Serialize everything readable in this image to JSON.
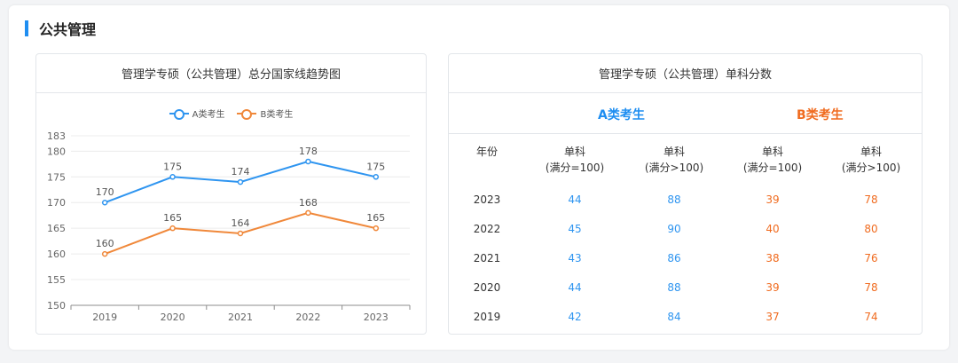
{
  "section": {
    "title": "公共管理"
  },
  "colors": {
    "a": "#2f95f0",
    "b": "#f0883a",
    "accent": "#1f8ef1"
  },
  "trend_panel": {
    "title": "管理学专硕（公共管理）总分国家线趋势图"
  },
  "chart_data": {
    "type": "line",
    "title": "管理学专硕（公共管理）总分国家线趋势图",
    "categories": [
      "2019",
      "2020",
      "2021",
      "2022",
      "2023"
    ],
    "series": [
      {
        "name": "A类考生",
        "values": [
          170,
          175,
          174,
          178,
          175
        ]
      },
      {
        "name": "B类考生",
        "values": [
          160,
          165,
          164,
          168,
          165
        ]
      }
    ],
    "yticks": [
      150,
      155,
      160,
      165,
      170,
      175,
      180,
      183
    ],
    "ylim": [
      150,
      183
    ],
    "legend_position": "top-center",
    "grid": true
  },
  "score_panel": {
    "title": "管理学专硕（公共管理）单科分数",
    "group_a": "A类考生",
    "group_b": "B类考生",
    "col_year": "年份",
    "col_single_100_line1": "单科",
    "col_single_100_line2": "(满分=100)",
    "col_single_gt100_line1": "单科",
    "col_single_gt100_line2": "(满分>100)",
    "rows": [
      {
        "year": "2023",
        "a100": "44",
        "agt": "88",
        "b100": "39",
        "bgt": "78"
      },
      {
        "year": "2022",
        "a100": "45",
        "agt": "90",
        "b100": "40",
        "bgt": "80"
      },
      {
        "year": "2021",
        "a100": "43",
        "agt": "86",
        "b100": "38",
        "bgt": "76"
      },
      {
        "year": "2020",
        "a100": "44",
        "agt": "88",
        "b100": "39",
        "bgt": "78"
      },
      {
        "year": "2019",
        "a100": "42",
        "agt": "84",
        "b100": "37",
        "bgt": "74"
      }
    ]
  }
}
